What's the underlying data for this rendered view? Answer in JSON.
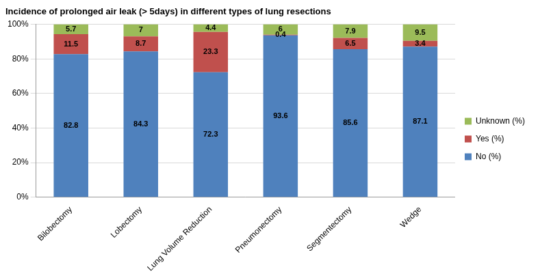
{
  "chart_data": {
    "type": "bar",
    "title": "Incidence of prolonged air leak (> 5days) in different types of lung resections",
    "categories": [
      "Bilobectomy",
      "Lobectomy",
      "Lung Volume Reduction",
      "Pneumonectomy",
      "Segmentectomy",
      "Wedge"
    ],
    "series": [
      {
        "name": "No (%)",
        "color": "#4f81bd",
        "values": [
          82.8,
          84.3,
          72.3,
          93.6,
          85.6,
          87.1
        ]
      },
      {
        "name": "Yes (%)",
        "color": "#c0504d",
        "values": [
          11.5,
          8.7,
          23.3,
          0.4,
          6.5,
          3.4
        ]
      },
      {
        "name": "Unknown (%)",
        "color": "#9bbb59",
        "values": [
          5.7,
          7,
          4.4,
          6,
          7.9,
          9.5
        ]
      }
    ],
    "ylim": [
      0,
      100
    ],
    "yticks": [
      {
        "value": 0,
        "label": "0%"
      },
      {
        "value": 20,
        "label": "20%"
      },
      {
        "value": 40,
        "label": "40%"
      },
      {
        "value": 60,
        "label": "60%"
      },
      {
        "value": 80,
        "label": "80%"
      },
      {
        "value": 100,
        "label": "100%"
      }
    ],
    "stacked": true,
    "data_labels": true,
    "legend": "right",
    "grid": true
  }
}
